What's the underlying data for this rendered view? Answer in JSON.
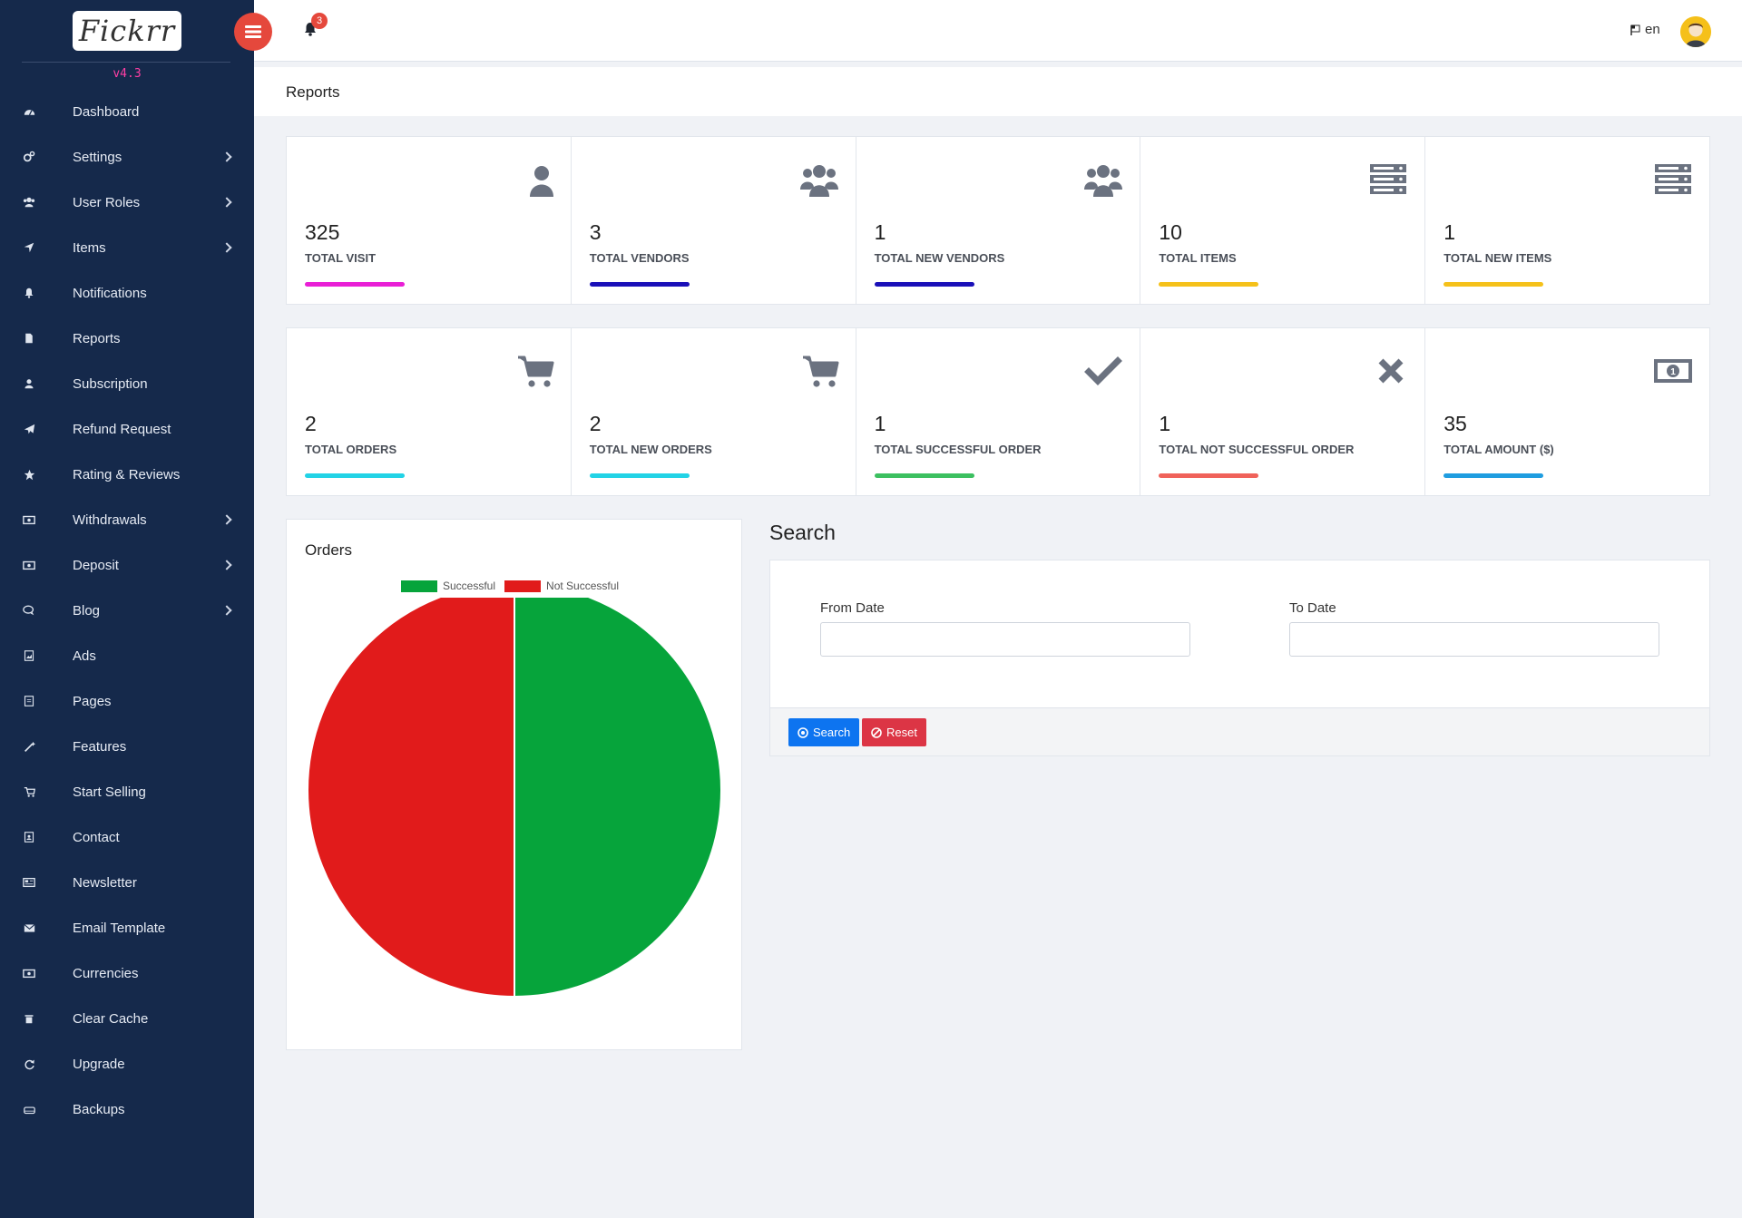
{
  "brand": {
    "logo_text": "Fickrr",
    "version": "v4.3"
  },
  "sidebar": {
    "items": [
      {
        "label": "Dashboard",
        "icon": "dashboard-icon",
        "has_children": false
      },
      {
        "label": "Settings",
        "icon": "cogs-icon",
        "has_children": true
      },
      {
        "label": "User Roles",
        "icon": "users-icon",
        "has_children": true
      },
      {
        "label": "Items",
        "icon": "location-arrow-icon",
        "has_children": true
      },
      {
        "label": "Notifications",
        "icon": "bell-icon",
        "has_children": false
      },
      {
        "label": "Reports",
        "icon": "file-icon",
        "has_children": false
      },
      {
        "label": "Subscription",
        "icon": "user-icon",
        "has_children": false
      },
      {
        "label": "Refund Request",
        "icon": "paper-plane-icon",
        "has_children": false
      },
      {
        "label": "Rating & Reviews",
        "icon": "star-icon",
        "has_children": false
      },
      {
        "label": "Withdrawals",
        "icon": "money-icon",
        "has_children": true
      },
      {
        "label": "Deposit",
        "icon": "money-icon",
        "has_children": true
      },
      {
        "label": "Blog",
        "icon": "comments-icon",
        "has_children": true
      },
      {
        "label": "Ads",
        "icon": "image-file-icon",
        "has_children": false
      },
      {
        "label": "Pages",
        "icon": "page-icon",
        "has_children": false
      },
      {
        "label": "Features",
        "icon": "magic-icon",
        "has_children": false
      },
      {
        "label": "Start Selling",
        "icon": "cart-icon",
        "has_children": false
      },
      {
        "label": "Contact",
        "icon": "address-book-icon",
        "has_children": false
      },
      {
        "label": "Newsletter",
        "icon": "newspaper-icon",
        "has_children": false
      },
      {
        "label": "Email Template",
        "icon": "envelope-icon",
        "has_children": false
      },
      {
        "label": "Currencies",
        "icon": "money-icon",
        "has_children": false
      },
      {
        "label": "Clear Cache",
        "icon": "trash-icon",
        "has_children": false
      },
      {
        "label": "Upgrade",
        "icon": "refresh-icon",
        "has_children": false
      },
      {
        "label": "Backups",
        "icon": "hdd-icon",
        "has_children": false
      }
    ]
  },
  "topbar": {
    "notification_count": "3",
    "language": "en"
  },
  "page": {
    "title": "Reports"
  },
  "stats_row_1": [
    {
      "value": "325",
      "label": "TOTAL VISIT",
      "icon": "user-icon",
      "bar_color": "#e91fd6"
    },
    {
      "value": "3",
      "label": "TOTAL VENDORS",
      "icon": "users-icon",
      "bar_color": "#1a10b8"
    },
    {
      "value": "1",
      "label": "TOTAL NEW VENDORS",
      "icon": "users-icon",
      "bar_color": "#1a10b8"
    },
    {
      "value": "10",
      "label": "TOTAL ITEMS",
      "icon": "server-icon",
      "bar_color": "#f5c11a"
    },
    {
      "value": "1",
      "label": "TOTAL NEW ITEMS",
      "icon": "server-icon",
      "bar_color": "#f5c11a"
    }
  ],
  "stats_row_2": [
    {
      "value": "2",
      "label": "TOTAL ORDERS",
      "icon": "cart-icon",
      "bar_color": "#22d3e6"
    },
    {
      "value": "2",
      "label": "TOTAL NEW ORDERS",
      "icon": "cart-icon",
      "bar_color": "#22d3e6"
    },
    {
      "value": "1",
      "label": "TOTAL SUCCESSFUL ORDER",
      "icon": "check-icon",
      "bar_color": "#3cc060"
    },
    {
      "value": "1",
      "label": "TOTAL NOT SUCCESSFUL ORDER",
      "icon": "close-icon",
      "bar_color": "#f0625a"
    },
    {
      "value": "35",
      "label": "TOTAL AMOUNT ($)",
      "icon": "money-icon",
      "bar_color": "#1f9de0"
    }
  ],
  "orders": {
    "title": "Orders",
    "legend": [
      {
        "name": "Successful",
        "color": "#06a43b"
      },
      {
        "name": "Not Successful",
        "color": "#e11b1b"
      }
    ]
  },
  "chart_data": {
    "type": "pie",
    "title": "Orders",
    "categories": [
      "Successful",
      "Not Successful"
    ],
    "values": [
      1,
      1
    ],
    "colors": [
      "#06a43b",
      "#e11b1b"
    ],
    "legend": "top"
  },
  "search": {
    "title": "Search",
    "from_label": "From Date",
    "to_label": "To Date",
    "from_value": "",
    "to_value": "",
    "search_button": "Search",
    "reset_button": "Reset"
  },
  "colors": {
    "sidebar_bg": "#15294b",
    "accent_red": "#e5483c",
    "primary_blue": "#0d74f0",
    "danger": "#dc3545"
  }
}
